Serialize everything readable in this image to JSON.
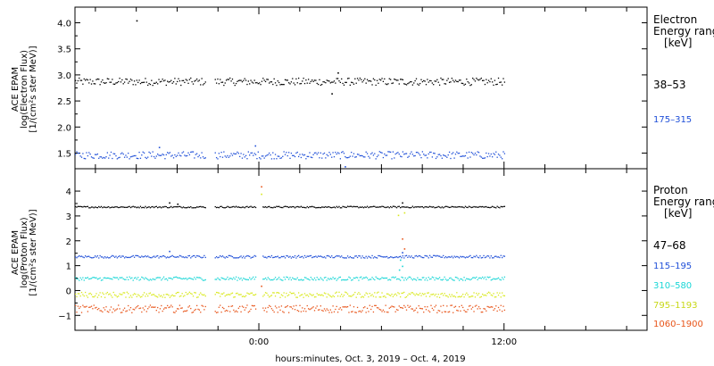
{
  "chart_data": [
    {
      "type": "scatter",
      "panel": "electron",
      "ylabel_lines": [
        "ACE EPAM",
        "log(Electron Flux)",
        "[1/(cm²s ster MeV)]"
      ],
      "ylim": [
        1.2,
        4.3
      ],
      "yticks": [
        "1.5",
        "2.0",
        "2.5",
        "3.0",
        "3.5",
        "4.0"
      ],
      "xlim_hours": [
        -9,
        19
      ],
      "data_gap_hours": [
        -2.6,
        -2.2
      ],
      "legend_title_lines": [
        "Electron",
        "Energy ranges",
        "[keV]"
      ],
      "series": [
        {
          "name": "38–53",
          "color": "#000000",
          "mean": 2.88,
          "jitter": 0.07,
          "outliers": [
            {
              "x": -6.0,
              "y": 4.05
            },
            {
              "x": 3.55,
              "y": 2.65
            },
            {
              "x": 3.85,
              "y": 3.05
            }
          ]
        },
        {
          "name": "175–315",
          "color": "#1f4fd8",
          "mean": 1.47,
          "jitter": 0.07,
          "outliers": [
            {
              "x": 4.2,
              "y": 1.25
            },
            {
              "x": -0.2,
              "y": 1.65
            },
            {
              "x": -4.9,
              "y": 1.62
            }
          ]
        }
      ]
    },
    {
      "type": "scatter",
      "panel": "proton",
      "ylabel_lines": [
        "ACE EPAM",
        "log(Proton Flux)",
        "[1/(cm²s ster MeV)]"
      ],
      "ylim": [
        -1.6,
        4.9
      ],
      "yticks": [
        "−1",
        "0",
        "1",
        "2",
        "3",
        "4"
      ],
      "xlim_hours": [
        -9,
        19
      ],
      "data_gap_hours": [
        -2.6,
        -2.2
      ],
      "legend_title_lines": [
        "Proton",
        "Energy ranges",
        "[keV]"
      ],
      "series": [
        {
          "name": "47–68",
          "color": "#000000",
          "mean": 3.38,
          "jitter": 0.03,
          "outliers": [
            {
              "x": -4.4,
              "y": 3.55
            },
            {
              "x": -4.0,
              "y": 3.5
            },
            {
              "x": 7.0,
              "y": 3.55
            }
          ]
        },
        {
          "name": "115–195",
          "color": "#1f4fd8",
          "mean": 1.38,
          "jitter": 0.05,
          "outliers": [
            {
              "x": -4.4,
              "y": 1.6
            },
            {
              "x": 7.0,
              "y": 1.55
            }
          ]
        },
        {
          "name": "310–580",
          "color": "#19d6d6",
          "mean": 0.5,
          "jitter": 0.07,
          "outliers": [
            {
              "x": 6.9,
              "y": 1.25
            },
            {
              "x": 7.0,
              "y": 1.0
            },
            {
              "x": 6.85,
              "y": 0.85
            }
          ]
        },
        {
          "name": "795–1193",
          "color": "#d8e81a",
          "mean": -0.15,
          "jitter": 0.11,
          "outliers": [
            {
              "x": 0.1,
              "y": 3.9
            },
            {
              "x": 7.1,
              "y": 3.15
            },
            {
              "x": 6.8,
              "y": 3.05
            }
          ]
        },
        {
          "name": "1060–1900",
          "color": "#e8551a",
          "mean": -0.72,
          "jitter": 0.15,
          "outliers": [
            {
              "x": 0.1,
              "y": 4.2
            },
            {
              "x": 7.0,
              "y": 2.1
            },
            {
              "x": 7.1,
              "y": 1.7
            },
            {
              "x": 0.1,
              "y": 0.2
            }
          ]
        }
      ]
    }
  ],
  "x_axis": {
    "ticks": [
      {
        "hour": 0,
        "label": "0:00"
      },
      {
        "hour": 12,
        "label": "12:00"
      }
    ],
    "minor_tick_hours": [
      -8,
      -6,
      -4,
      -2,
      2,
      4,
      6,
      8,
      10,
      14,
      16,
      18
    ],
    "data_start_hour": -9,
    "data_end_hour": 12,
    "caption": "hours:minutes, Oct.  3, 2019 – Oct.  4, 2019"
  }
}
